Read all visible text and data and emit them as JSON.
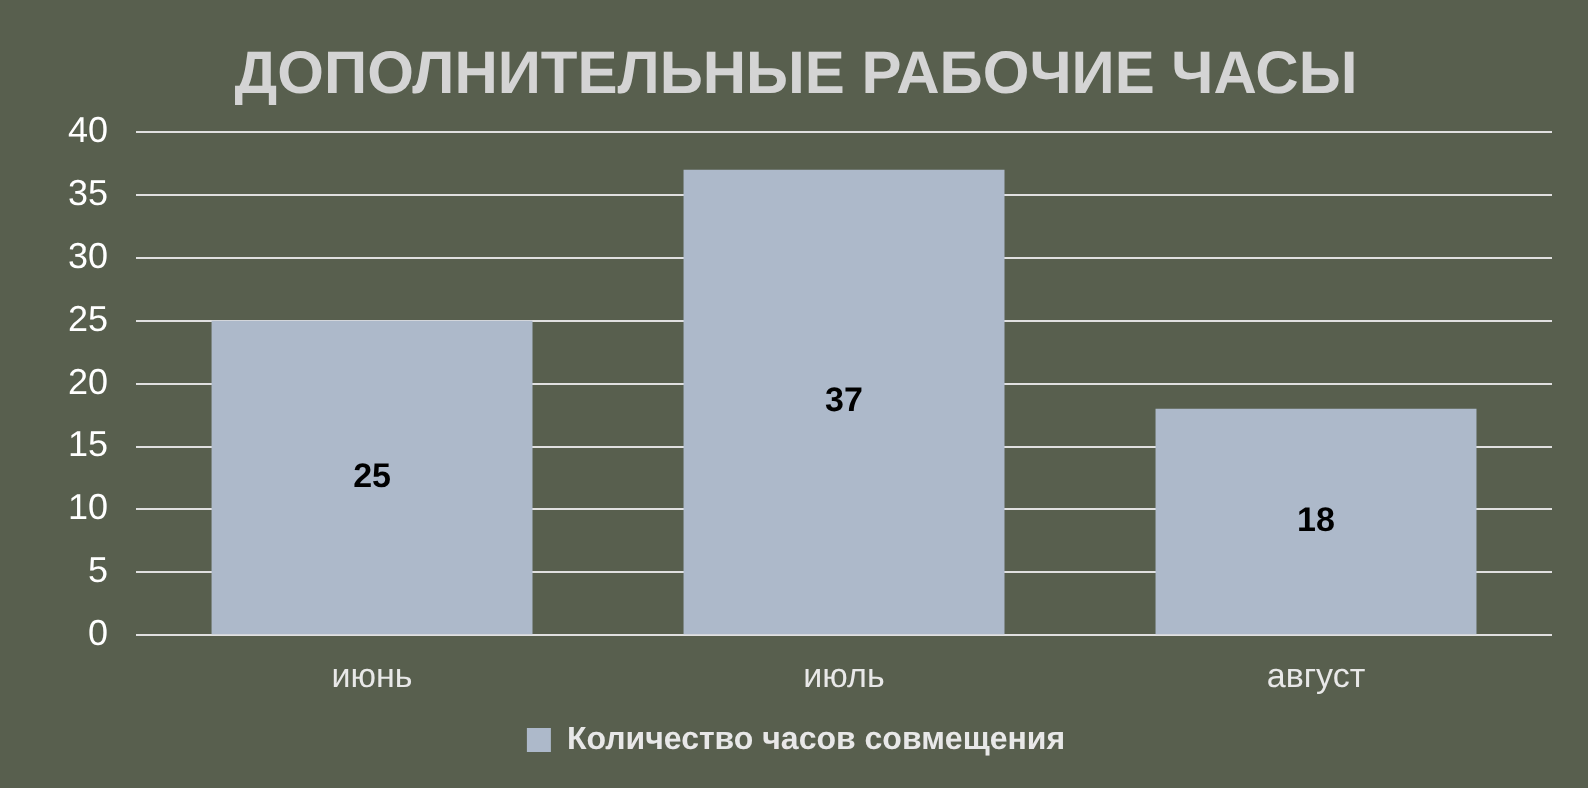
{
  "chart_data": {
    "type": "bar",
    "title": "ДОПОЛНИТЕЛЬНЫЕ РАБОЧИЕ ЧАСЫ",
    "categories": [
      "июнь",
      "июль",
      "август"
    ],
    "series": [
      {
        "name": "Количество часов совмещения",
        "color": "#adb9ca",
        "values": [
          25,
          37,
          18
        ]
      }
    ],
    "ylim": [
      0,
      40
    ],
    "yticks": [
      0,
      5,
      10,
      15,
      20,
      25,
      30,
      35,
      40
    ],
    "grid": "y",
    "legend": "bottom",
    "data_labels": true
  }
}
